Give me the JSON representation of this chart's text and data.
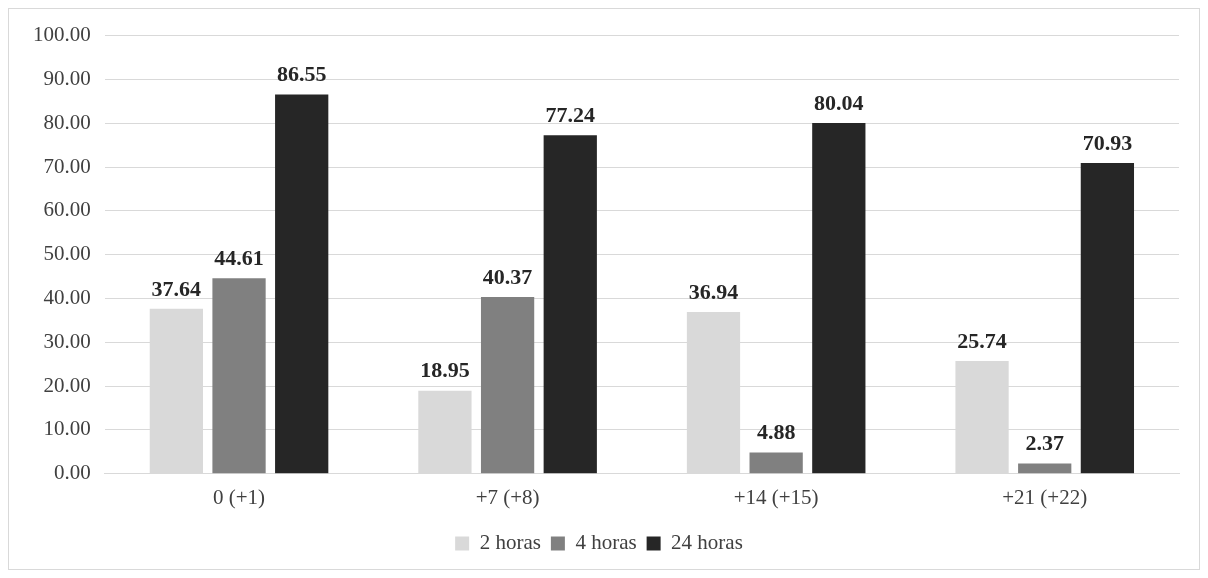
{
  "chart_data": {
    "type": "bar",
    "categories": [
      "0 (+1)",
      "+7 (+8)",
      "+14 (+15)",
      "+21 (+22)"
    ],
    "series": [
      {
        "name": "2 horas",
        "color": "#d9d9d9",
        "values": [
          37.64,
          18.95,
          36.94,
          25.74
        ]
      },
      {
        "name": "4 horas",
        "color": "#808080",
        "values": [
          44.61,
          40.37,
          4.88,
          2.37
        ]
      },
      {
        "name": "24 horas",
        "color": "#262626",
        "values": [
          86.55,
          77.24,
          80.04,
          70.93
        ]
      }
    ],
    "ylim": [
      0,
      100
    ],
    "yticks": [
      {
        "value": 0,
        "label": "0.00"
      },
      {
        "value": 10,
        "label": "10.00"
      },
      {
        "value": 20,
        "label": "20.00"
      },
      {
        "value": 30,
        "label": "30.00"
      },
      {
        "value": 40,
        "label": "40.00"
      },
      {
        "value": 50,
        "label": "50.00"
      },
      {
        "value": 60,
        "label": "60.00"
      },
      {
        "value": 70,
        "label": "70.00"
      },
      {
        "value": 80,
        "label": "80.00"
      },
      {
        "value": 90,
        "label": "90.00"
      },
      {
        "value": 100,
        "label": "100.00"
      }
    ],
    "grid": "y",
    "legend": "bottom",
    "data_labels": true
  }
}
